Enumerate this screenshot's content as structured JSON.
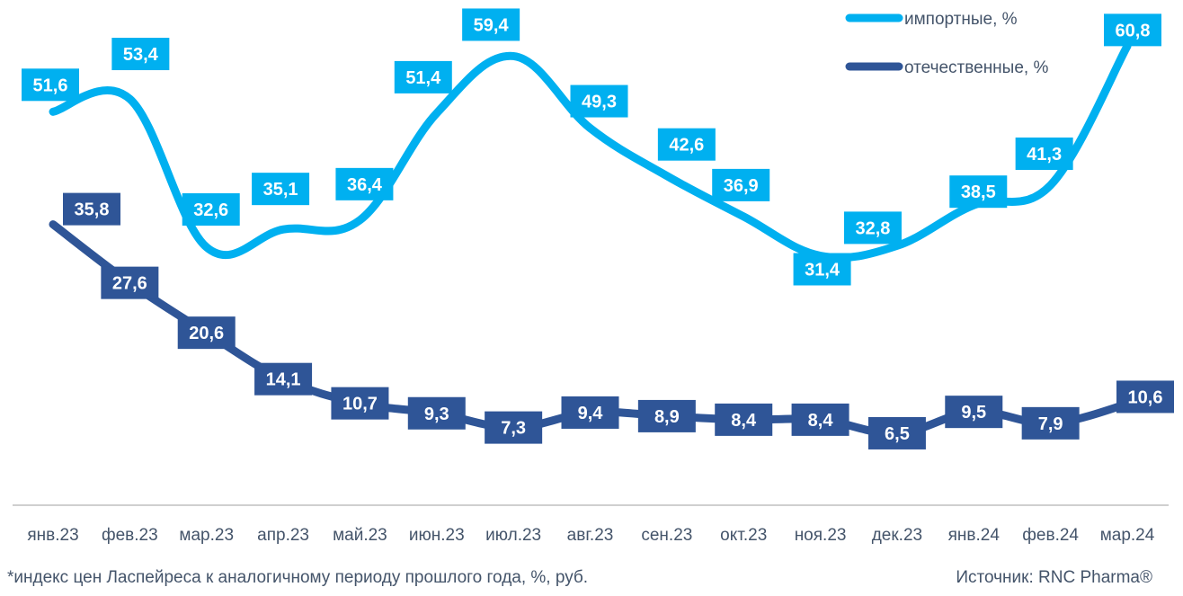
{
  "chart_data": {
    "type": "line",
    "categories": [
      "янв.23",
      "фев.23",
      "мар.23",
      "апр.23",
      "май.23",
      "июн.23",
      "июл.23",
      "авг.23",
      "сен.23",
      "окт.23",
      "ноя.23",
      "дек.23",
      "янв.24",
      "фев.24",
      "мар.24"
    ],
    "series": [
      {
        "name": "импортные, %",
        "color": "#00b0f0",
        "values": [
          51.6,
          53.4,
          32.6,
          35.1,
          36.4,
          51.4,
          59.4,
          49.3,
          42.6,
          36.9,
          31.4,
          32.8,
          38.5,
          41.3,
          60.8
        ],
        "labels": [
          "51,6",
          "53,4",
          "32,6",
          "35,1",
          "36,4",
          "51,4",
          "59,4",
          "49,3",
          "42,6",
          "36,9",
          "31,4",
          "32,8",
          "38,5",
          "41,3",
          "60,8"
        ]
      },
      {
        "name": "отечественные, %",
        "color": "#2f5597",
        "values": [
          35.8,
          27.6,
          20.6,
          14.1,
          10.7,
          9.3,
          7.3,
          9.4,
          8.9,
          8.4,
          8.4,
          6.5,
          9.5,
          7.9,
          10.6
        ],
        "labels": [
          "35,8",
          "27,6",
          "20,6",
          "14,1",
          "10,7",
          "9,3",
          "7,3",
          "9,4",
          "8,9",
          "8,4",
          "8,4",
          "6,5",
          "9,5",
          "7,9",
          "10,6"
        ]
      }
    ],
    "legend_position": "top-right",
    "grid": false,
    "axis_color": "#bfbfbf",
    "tick_color": "#44546a"
  },
  "footnote": "*индекс цен Ласпейреса к аналогичному периоду прошлого года, %, руб.",
  "source": "Источник: RNC Pharma®"
}
